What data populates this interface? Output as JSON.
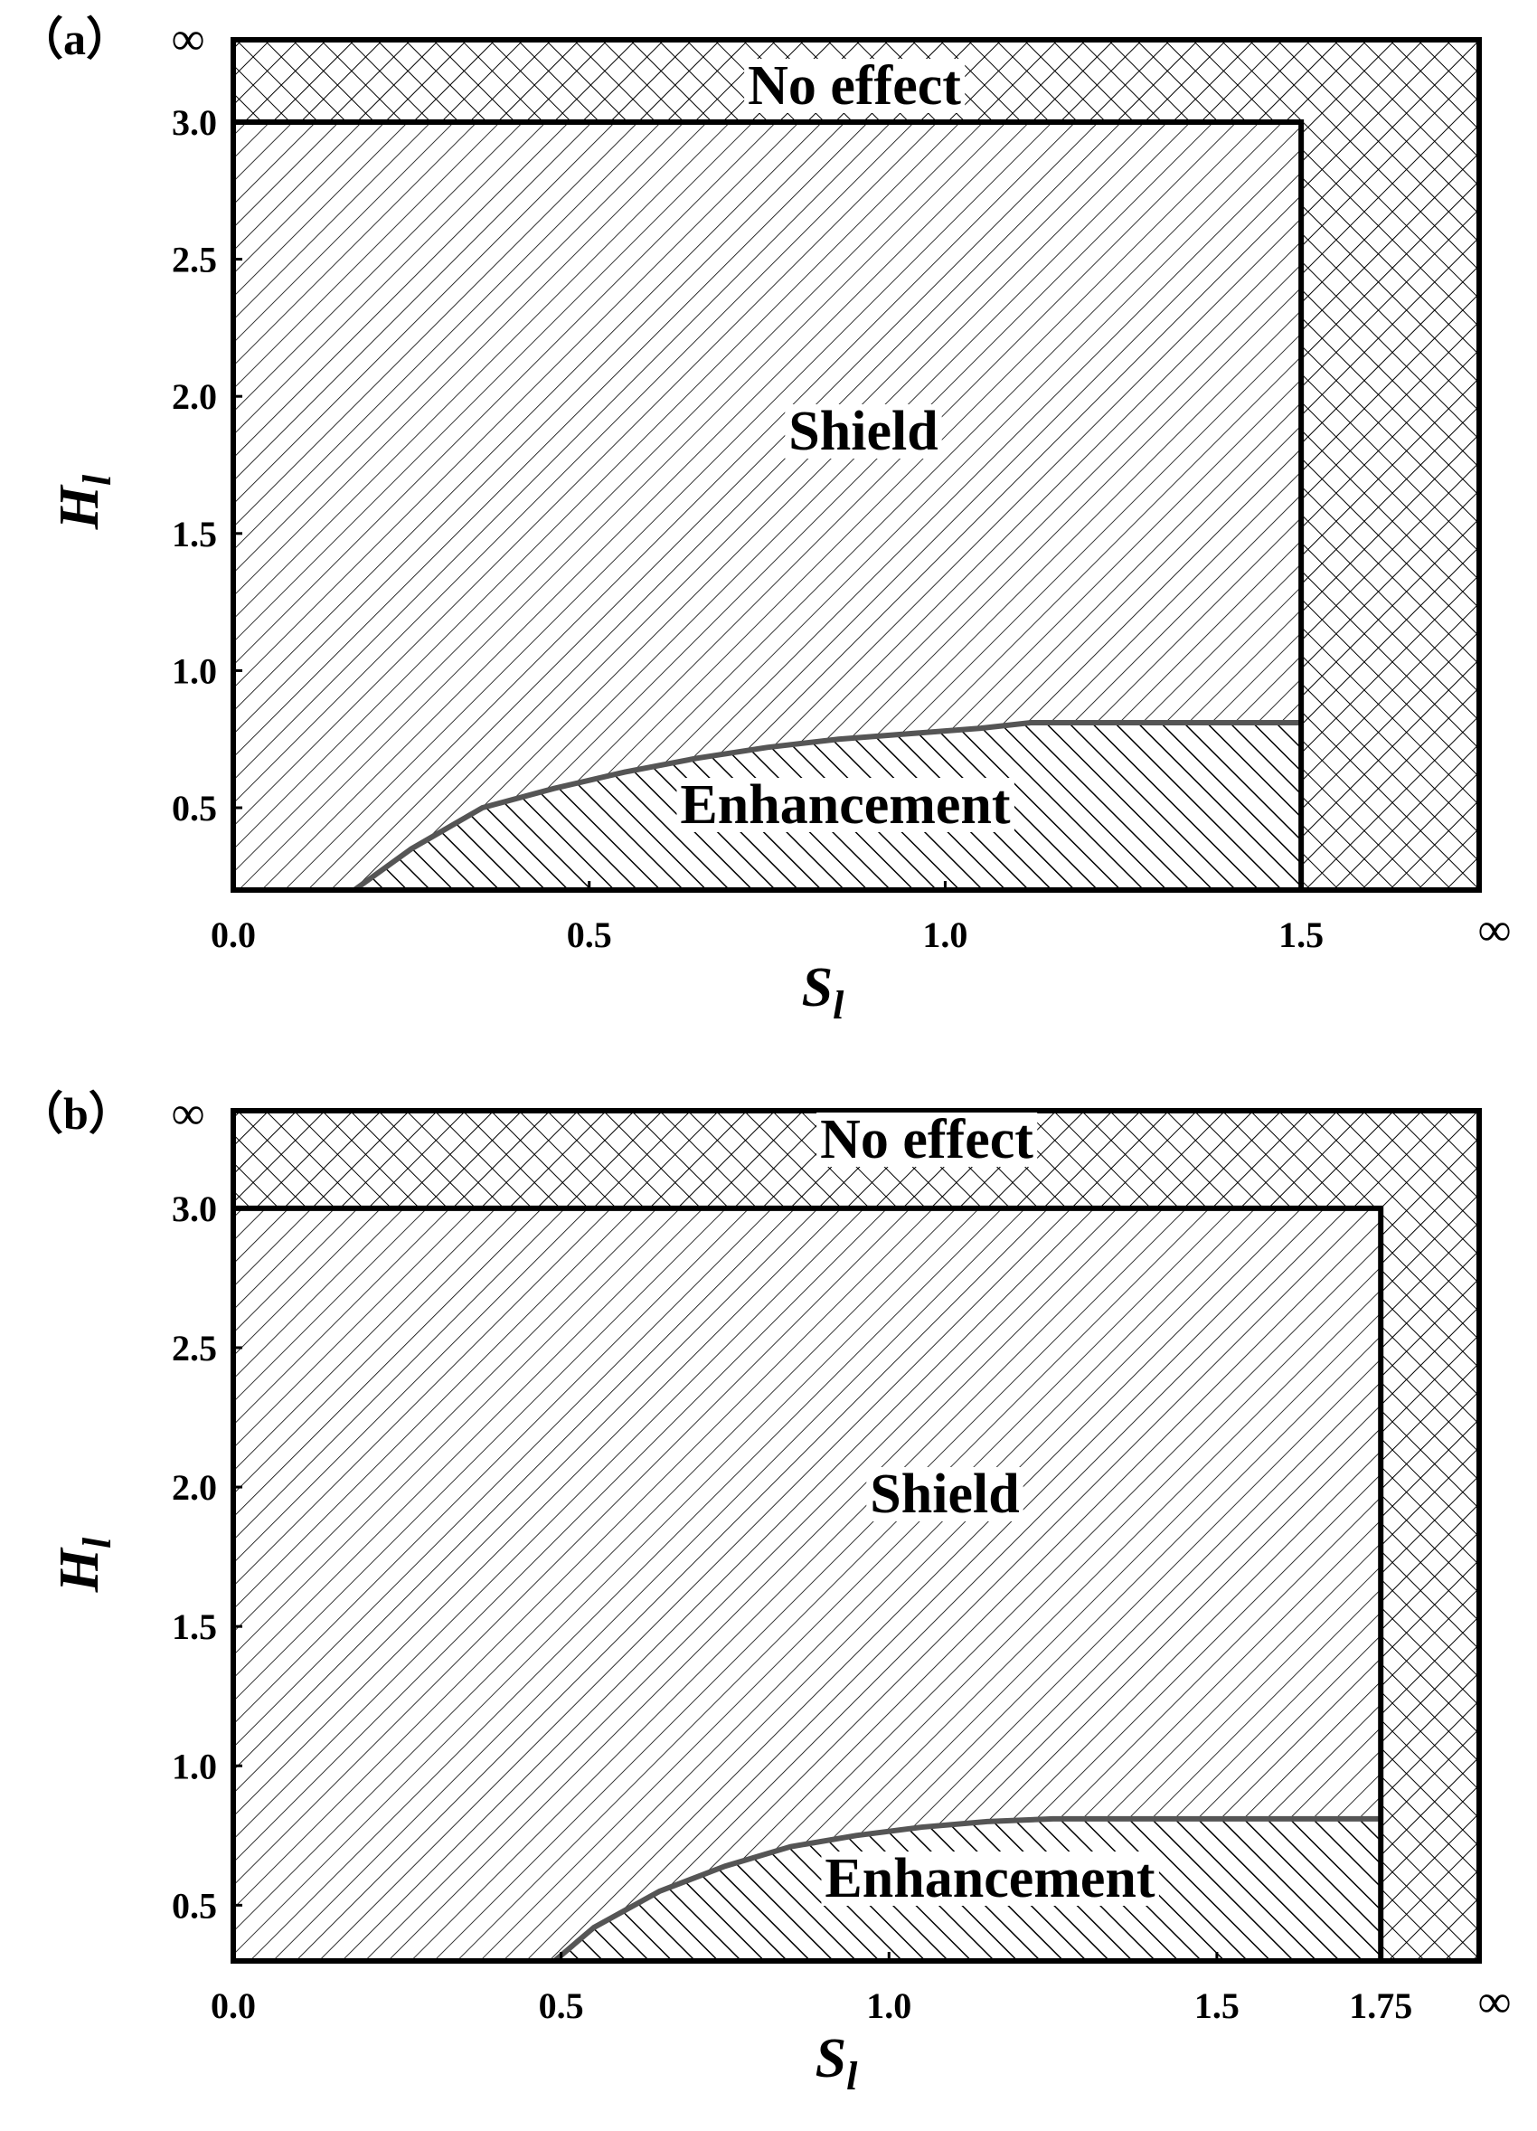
{
  "chart_data": [
    {
      "type": "area",
      "panel_label": "（a）",
      "xlabel": "S",
      "xlabel_sub": "l",
      "ylabel": "H",
      "ylabel_sub": "l",
      "xlim": [
        0.0,
        1.75
      ],
      "ylim": [
        0.2,
        3.3
      ],
      "x_ticks": [
        0.0,
        0.5,
        1.0,
        1.5
      ],
      "x_tick_labels": [
        "0.0",
        "0.5",
        "1.0",
        "1.5"
      ],
      "y_ticks": [
        0.5,
        1.0,
        1.5,
        2.0,
        2.5,
        3.0
      ],
      "y_tick_labels": [
        "0.5",
        "1.0",
        "1.5",
        "2.0",
        "2.5",
        "3.0"
      ],
      "infinity_label": "∞",
      "grid": false,
      "regions": [
        {
          "name": "No effect",
          "pattern": "crosshatch",
          "boundary": {
            "x_max": 1.5,
            "y_max": 3.0
          }
        },
        {
          "name": "Shield",
          "pattern": "backslash-hatch",
          "x": [
            0.0,
            1.5
          ],
          "y": [
            0.2,
            3.0
          ]
        },
        {
          "name": "Enhancement",
          "pattern": "slash-hatch",
          "boundary_x": [
            0.17,
            0.25,
            0.35,
            0.45,
            0.55,
            0.65,
            0.75,
            0.85,
            0.95,
            1.05,
            1.12,
            1.2,
            1.3,
            1.4,
            1.5
          ],
          "boundary_y": [
            0.2,
            0.35,
            0.5,
            0.57,
            0.63,
            0.68,
            0.72,
            0.75,
            0.77,
            0.79,
            0.81,
            0.81,
            0.81,
            0.81,
            0.81
          ]
        }
      ]
    },
    {
      "type": "area",
      "panel_label": "（b）",
      "xlabel": "S",
      "xlabel_sub": "l",
      "ylabel": "H",
      "ylabel_sub": "l",
      "xlim": [
        0.0,
        1.9
      ],
      "ylim": [
        0.3,
        3.35
      ],
      "x_ticks": [
        0.0,
        0.5,
        1.0,
        1.5,
        1.75
      ],
      "x_tick_labels": [
        "0.0",
        "0.5",
        "1.0",
        "1.5",
        "1.75"
      ],
      "y_ticks": [
        0.5,
        1.0,
        1.5,
        2.0,
        2.5,
        3.0
      ],
      "y_tick_labels": [
        "0.5",
        "1.0",
        "1.5",
        "2.0",
        "2.5",
        "3.0"
      ],
      "infinity_label": "∞",
      "grid": false,
      "regions": [
        {
          "name": "No effect",
          "pattern": "crosshatch",
          "boundary": {
            "x_max": 1.75,
            "y_max": 3.0
          }
        },
        {
          "name": "Shield",
          "pattern": "backslash-hatch",
          "x": [
            0.0,
            1.75
          ],
          "y": [
            0.3,
            3.0
          ]
        },
        {
          "name": "Enhancement",
          "pattern": "slash-hatch",
          "boundary_x": [
            0.49,
            0.55,
            0.65,
            0.75,
            0.85,
            0.95,
            1.05,
            1.15,
            1.25,
            1.35,
            1.45,
            1.55,
            1.65,
            1.75
          ],
          "boundary_y": [
            0.3,
            0.42,
            0.55,
            0.64,
            0.71,
            0.75,
            0.78,
            0.8,
            0.81,
            0.81,
            0.81,
            0.81,
            0.81,
            0.81
          ]
        }
      ]
    }
  ]
}
